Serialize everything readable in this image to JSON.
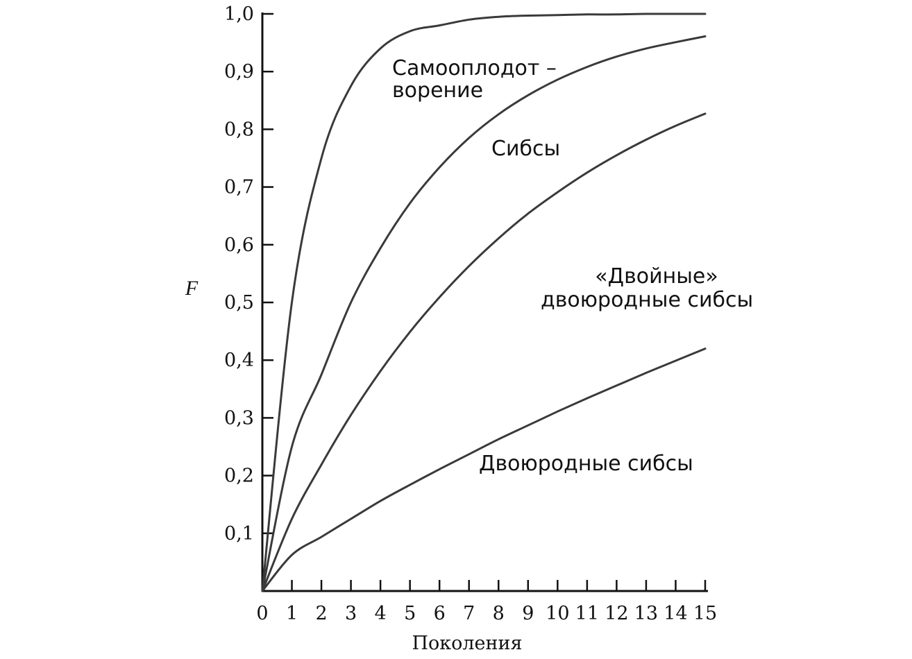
{
  "chart_data": {
    "type": "line",
    "title": "",
    "xlabel": "Поколения",
    "ylabel": "F",
    "xlim": [
      0,
      15
    ],
    "ylim": [
      0,
      1.0
    ],
    "grid": false,
    "legend": "none",
    "x_tick_labels": [
      "0",
      "1",
      "2",
      "3",
      "4",
      "5",
      "6",
      "7",
      "8",
      "9",
      "10",
      "11",
      "12",
      "13",
      "14",
      "15"
    ],
    "y_tick_labels": [
      "",
      "0,1",
      "0,2",
      "0,3",
      "0,4",
      "0,5",
      "0,6",
      "0,7",
      "0,8",
      "0,9",
      "1,0"
    ],
    "x": [
      0,
      1,
      2,
      3,
      4,
      5,
      6,
      7,
      8,
      9,
      10,
      11,
      12,
      13,
      14,
      15
    ],
    "series": [
      {
        "name": "Самооплодотворение",
        "label_lines": [
          "Самооплодот –",
          "ворение"
        ],
        "values": [
          0,
          0.5,
          0.75,
          0.875,
          0.94,
          0.97,
          0.98,
          0.99,
          0.995,
          0.997,
          0.998,
          0.999,
          0.999,
          1.0,
          1.0,
          1.0
        ]
      },
      {
        "name": "Сибсы",
        "label_lines": [
          "Сибсы"
        ],
        "values": [
          0,
          0.25,
          0.375,
          0.5,
          0.594,
          0.672,
          0.734,
          0.785,
          0.826,
          0.859,
          0.886,
          0.908,
          0.926,
          0.94,
          0.951,
          0.961
        ]
      },
      {
        "name": "«Двойные» двоюродные сибсы",
        "label_lines": [
          "«Двойные»",
          "двоюродные сибсы"
        ],
        "values": [
          0,
          0.125,
          0.219,
          0.305,
          0.381,
          0.449,
          0.509,
          0.563,
          0.611,
          0.654,
          0.691,
          0.725,
          0.755,
          0.782,
          0.806,
          0.827
        ]
      },
      {
        "name": "Двоюродные сибсы",
        "label_lines": [
          "Двоюродные  сибсы"
        ],
        "values": [
          0,
          0.0625,
          0.0938,
          0.125,
          0.156,
          0.184,
          0.211,
          0.237,
          0.263,
          0.287,
          0.311,
          0.334,
          0.356,
          0.378,
          0.399,
          0.42
        ]
      }
    ]
  }
}
